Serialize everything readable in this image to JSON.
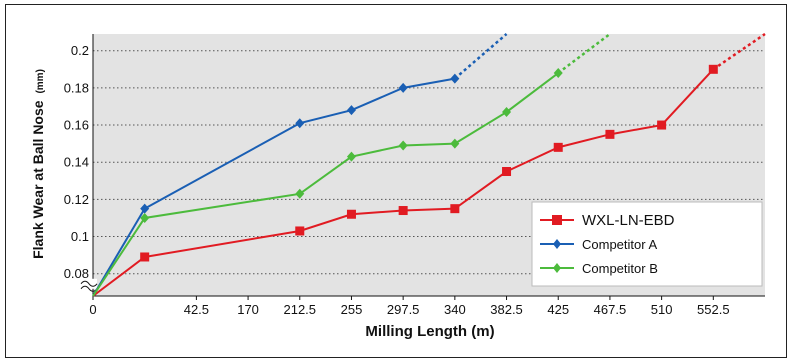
{
  "chart_data": {
    "type": "line",
    "xlabel": "Milling Length (m)",
    "ylabel": "Flank Wear at Ball Nose",
    "ylabel_unit": "(mm)",
    "x_ticks": [
      "0",
      "42.5",
      "170",
      "212.5",
      "255",
      "297.5",
      "340",
      "382.5",
      "425",
      "467.5",
      "510",
      "552.5"
    ],
    "y_ticks": [
      "0.08",
      "0.1",
      "0.12",
      "0.14",
      "0.16",
      "0.18",
      "0.2"
    ],
    "ylim": [
      0.068,
      0.209
    ],
    "axis_break": true,
    "grid": "horizontal dotted",
    "legend_position": "lower-right",
    "series": [
      {
        "name": "WXL-LN-EBD",
        "color": "#e11b22",
        "marker": "square",
        "points": [
          [
            0,
            0.068
          ],
          [
            42.5,
            0.089
          ],
          [
            170,
            0.103
          ],
          [
            212.5,
            0.112
          ],
          [
            255,
            0.114
          ],
          [
            297.5,
            0.115
          ],
          [
            340,
            0.135
          ],
          [
            382.5,
            0.148
          ],
          [
            425,
            0.155
          ],
          [
            467.5,
            0.16
          ],
          [
            510,
            0.19
          ]
        ],
        "extrapolation": [
          [
            510,
            0.19
          ],
          [
            552.5,
            0.209
          ]
        ]
      },
      {
        "name": "Competitor A",
        "color": "#1a5fb4",
        "marker": "diamond",
        "points": [
          [
            0,
            0.068
          ],
          [
            42.5,
            0.115
          ],
          [
            170,
            0.161
          ],
          [
            212.5,
            0.168
          ],
          [
            255,
            0.18
          ],
          [
            297.5,
            0.185
          ]
        ],
        "extrapolation": [
          [
            297.5,
            0.185
          ],
          [
            340,
            0.209
          ]
        ]
      },
      {
        "name": "Competitor B",
        "color": "#4cbb3c",
        "marker": "diamond",
        "points": [
          [
            0,
            0.068
          ],
          [
            42.5,
            0.11
          ],
          [
            170,
            0.123
          ],
          [
            212.5,
            0.143
          ],
          [
            255,
            0.149
          ],
          [
            297.5,
            0.15
          ],
          [
            340,
            0.167
          ],
          [
            382.5,
            0.188
          ]
        ],
        "extrapolation": [
          [
            382.5,
            0.188
          ],
          [
            425,
            0.209
          ]
        ]
      }
    ]
  }
}
